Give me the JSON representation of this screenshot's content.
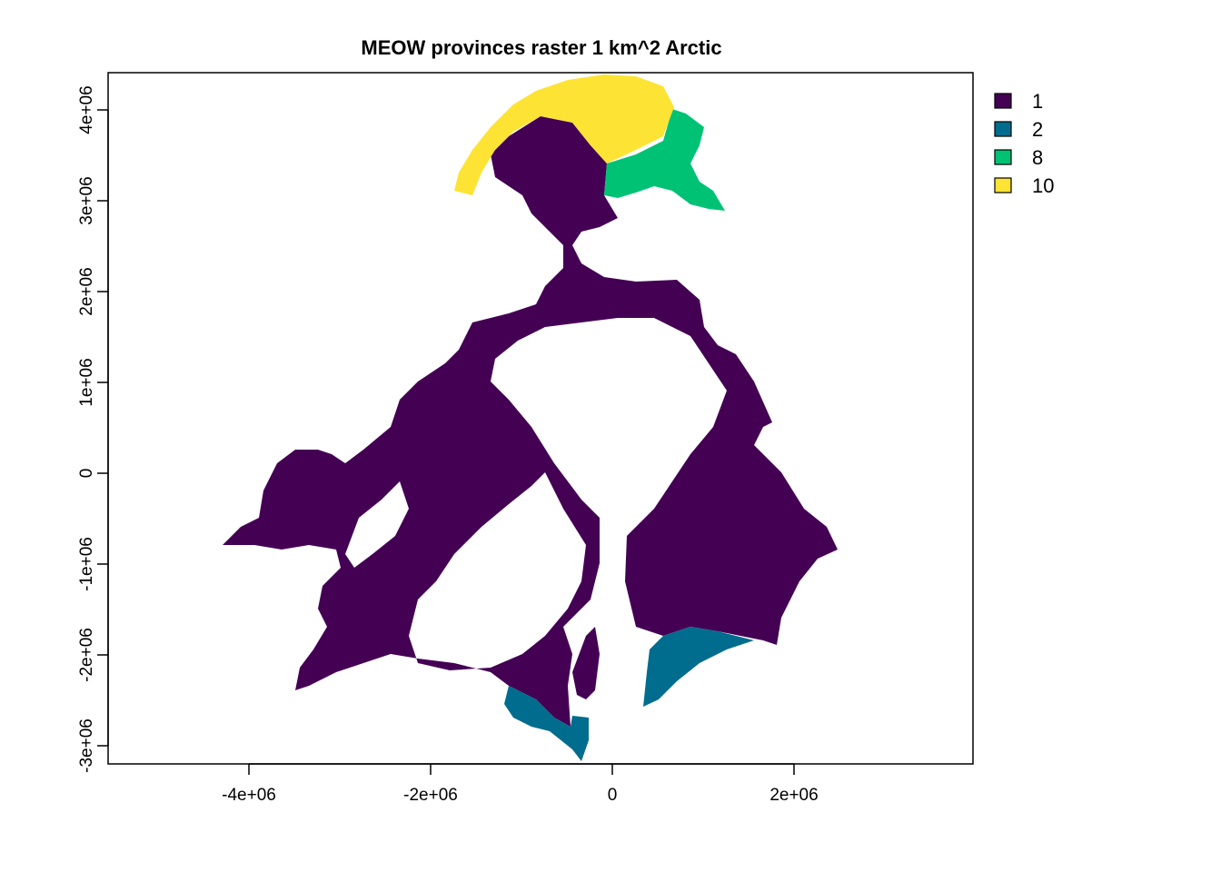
{
  "title": "MEOW provinces raster 1 km^2 Arctic",
  "colors": {
    "1": "#440154",
    "2": "#006C8E",
    "8": "#00C275",
    "10": "#FDE333"
  },
  "x_axis": {
    "ticks": [
      -4000000,
      -2000000,
      0,
      2000000
    ],
    "tick_labels": [
      "-4e+06",
      "-2e+06",
      "0",
      "2e+06"
    ]
  },
  "y_axis": {
    "ticks": [
      -3000000,
      -2000000,
      -1000000,
      0,
      1000000,
      2000000,
      3000000,
      4000000
    ],
    "tick_labels": [
      "-3e+06",
      "-2e+06",
      "-1e+06",
      "0",
      "1e+06",
      "2e+06",
      "3e+06",
      "4e+06"
    ]
  },
  "legend": [
    {
      "label": "1",
      "color": "#440154"
    },
    {
      "label": "2",
      "color": "#006C8E"
    },
    {
      "label": "8",
      "color": "#00C275"
    },
    {
      "label": "10",
      "color": "#FDE333"
    }
  ]
}
